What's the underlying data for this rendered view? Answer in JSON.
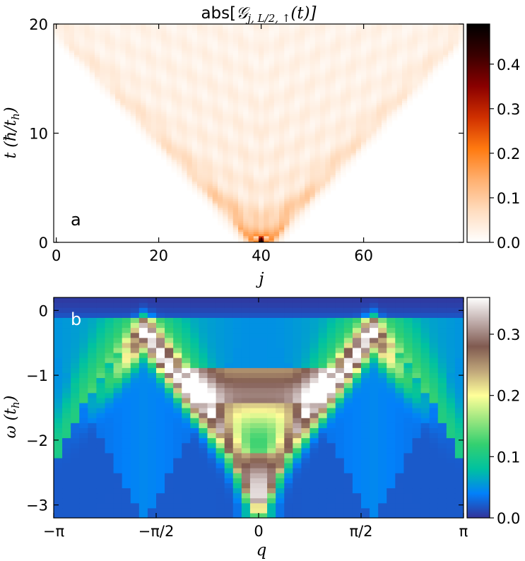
{
  "chart_data": [
    {
      "type": "heatmap",
      "panel_label": "a",
      "title": "abs[𝒢_{j, L/2, ↑}(t)]",
      "title_parts": {
        "prefix": "abs[",
        "g": "𝒢",
        "sub": "j, L/2, ↑",
        "suffix": "(t)]"
      },
      "xlabel": "j",
      "ylabel": "t (ħ/t_h)",
      "ylabel_parts": {
        "main": "t (ħ/t",
        "sub": "h",
        "close": ")"
      },
      "xlim": [
        -0.5,
        79.5
      ],
      "ylim": [
        0,
        20
      ],
      "x_ticks": [
        0,
        20,
        40,
        60
      ],
      "x_tick_labels": [
        "0",
        "20",
        "40",
        "60"
      ],
      "y_ticks": [
        0,
        10,
        20
      ],
      "y_tick_labels": [
        "0",
        "10",
        "20"
      ],
      "colormap": "gist_heat_r",
      "colormap_stops": [
        "#ffffff",
        "#ffddc0",
        "#ffb070",
        "#ff7a10",
        "#d03000",
        "#8a0000",
        "#3a0000",
        "#000000"
      ],
      "color_range": [
        0,
        0.49
      ],
      "colorbar_ticks": [
        0.0,
        0.1,
        0.2,
        0.3,
        0.4
      ],
      "colorbar_tick_labels": [
        "0.0",
        "0.1",
        "0.2",
        "0.3",
        "0.4"
      ],
      "features": {
        "source_site": 40,
        "peak_value": 0.49,
        "light_cone_velocity_sites_per_unit_time": 2.0,
        "description_values": "peak at j=40,t=0; amplitude spreads linearly in a light cone and decays"
      }
    },
    {
      "type": "heatmap",
      "panel_label": "b",
      "xlabel": "q",
      "ylabel": "ω (t_h)",
      "ylabel_parts": {
        "main": "ω (t",
        "sub": "h",
        "close": ")"
      },
      "xlim": [
        -3.1416,
        3.1416
      ],
      "ylim": [
        -3.2,
        0.2
      ],
      "x_ticks": [
        -3.1416,
        -1.5708,
        0,
        1.5708,
        3.1416
      ],
      "x_tick_labels": [
        "−π",
        "−π/2",
        "0",
        "π/2",
        "π"
      ],
      "y_ticks": [
        0,
        -1,
        -2,
        -3
      ],
      "y_tick_labels": [
        "0",
        "−1",
        "−2",
        "−3"
      ],
      "colormap": "terrain",
      "colormap_stops": [
        "#333399",
        "#0280fa",
        "#00c2a0",
        "#33d070",
        "#99e67f",
        "#ffff99",
        "#bfa67a",
        "#805a50",
        "#bfacaa",
        "#ffffff"
      ],
      "color_range": [
        0,
        0.36
      ],
      "colorbar_ticks": [
        0.0,
        0.1,
        0.2,
        0.3
      ],
      "colorbar_tick_labels": [
        "0.0",
        "0.1",
        "0.2",
        "0.3"
      ],
      "features": {
        "maxima": [
          {
            "q": -1.79,
            "omega": -0.6,
            "value": 0.36
          },
          {
            "q": 1.79,
            "omega": -0.6,
            "value": 0.36
          }
        ],
        "central_minimum": {
          "q": 0,
          "omega": -2.0,
          "value": 0.12
        },
        "background_value": 0.0
      }
    }
  ]
}
